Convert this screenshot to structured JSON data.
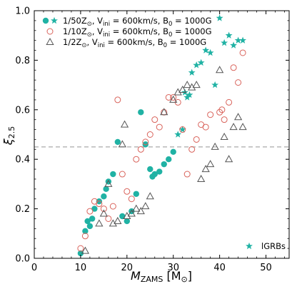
{
  "chart_data": {
    "type": "scatter",
    "xlabel": "M_ZAMS [M_sun]",
    "ylabel": "xi_2.5",
    "xlabel_parts": {
      "main": "M",
      "sub": "ZAMS",
      "unit_open": " [M",
      "unit_sub": "⊙",
      "unit_close": "]"
    },
    "ylabel_parts": {
      "main": "ξ",
      "sub": "2.5"
    },
    "xlim": [
      0,
      55
    ],
    "ylim": [
      0.0,
      1.0
    ],
    "xticks": [
      0,
      10,
      20,
      30,
      40,
      50
    ],
    "yticks": [
      0.0,
      0.2,
      0.4,
      0.6,
      0.8,
      1.0
    ],
    "xtick_labels": [
      "0",
      "10",
      "20",
      "30",
      "40",
      "50"
    ],
    "ytick_labels": [
      "0.0",
      "0.2",
      "0.4",
      "0.6",
      "0.8",
      "1.0"
    ],
    "grid": false,
    "legend_position": "top-left",
    "reference_line": {
      "y": 0.45,
      "style": "dashed",
      "color": "#aaaaaa"
    },
    "series": [
      {
        "name": "1/50Z⊙, Vini = 600km/s, B0 = 1000G",
        "legend_parts": {
          "z": "1/50Z",
          "v": "V",
          "vsub": "ini",
          "vval": " = 600km/s, ",
          "b": "B",
          "bsub": "0",
          "bval": " = 1000G"
        },
        "marker": "filled-circle",
        "color": "#20b2a4",
        "points": [
          [
            10.0,
            0.02
          ],
          [
            11.0,
            0.11
          ],
          [
            11.5,
            0.15
          ],
          [
            12.0,
            0.13
          ],
          [
            12.5,
            0.16
          ],
          [
            13.0,
            0.2
          ],
          [
            14.0,
            0.23
          ],
          [
            15.0,
            0.25
          ],
          [
            15.5,
            0.28
          ],
          [
            16.0,
            0.31
          ],
          [
            17.0,
            0.34
          ],
          [
            18.0,
            0.47
          ],
          [
            19.0,
            0.17
          ],
          [
            20.0,
            0.15
          ],
          [
            21.0,
            0.19
          ],
          [
            22.0,
            0.26
          ],
          [
            23.0,
            0.59
          ],
          [
            24.0,
            0.46
          ],
          [
            25.0,
            0.36
          ],
          [
            25.5,
            0.33
          ],
          [
            26.0,
            0.34
          ],
          [
            27.0,
            0.35
          ],
          [
            28.0,
            0.38
          ],
          [
            29.0,
            0.4
          ],
          [
            30.0,
            0.43
          ]
        ]
      },
      {
        "name": "1/50Z⊙ (lGRBs)",
        "marker": "star",
        "color": "#20b2a4",
        "points": [
          [
            31.0,
            0.5
          ],
          [
            32.0,
            0.52
          ],
          [
            32.5,
            0.67
          ],
          [
            33.0,
            0.65
          ],
          [
            33.5,
            0.66
          ],
          [
            34.0,
            0.75
          ],
          [
            35.0,
            0.78
          ],
          [
            36.0,
            0.79
          ],
          [
            37.0,
            0.84
          ],
          [
            38.0,
            0.83
          ],
          [
            39.0,
            0.7
          ],
          [
            40.0,
            0.97
          ],
          [
            41.0,
            0.87
          ],
          [
            42.0,
            0.9
          ],
          [
            43.0,
            0.86
          ],
          [
            44.0,
            0.88
          ],
          [
            45.0,
            0.88
          ]
        ]
      },
      {
        "name": "1/10Z⊙, Vini = 600km/s, B0 = 1000G",
        "legend_parts": {
          "z": "1/10Z",
          "v": "V",
          "vsub": "ini",
          "vval": " = 600km/s, ",
          "b": "B",
          "bsub": "0",
          "bval": " = 1000G"
        },
        "marker": "open-circle",
        "color": "#d9635b",
        "points": [
          [
            10.0,
            0.04
          ],
          [
            11.0,
            0.09
          ],
          [
            12.0,
            0.19
          ],
          [
            13.0,
            0.23
          ],
          [
            14.0,
            0.22
          ],
          [
            15.0,
            0.2
          ],
          [
            16.0,
            0.16
          ],
          [
            17.0,
            0.21
          ],
          [
            18.0,
            0.64
          ],
          [
            19.0,
            0.34
          ],
          [
            20.0,
            0.27
          ],
          [
            21.0,
            0.24
          ],
          [
            22.0,
            0.4
          ],
          [
            23.0,
            0.44
          ],
          [
            24.0,
            0.47
          ],
          [
            25.0,
            0.5
          ],
          [
            26.0,
            0.56
          ],
          [
            27.0,
            0.53
          ],
          [
            28.0,
            0.59
          ],
          [
            29.0,
            0.65
          ],
          [
            30.0,
            0.65
          ],
          [
            31.0,
            0.63
          ],
          [
            32.0,
            0.52
          ],
          [
            33.0,
            0.34
          ],
          [
            34.0,
            0.44
          ],
          [
            35.0,
            0.48
          ],
          [
            36.0,
            0.54
          ],
          [
            37.0,
            0.53
          ],
          [
            38.0,
            0.58
          ],
          [
            40.0,
            0.59
          ],
          [
            40.5,
            0.6
          ],
          [
            41.0,
            0.56
          ],
          [
            42.0,
            0.63
          ],
          [
            43.0,
            0.77
          ],
          [
            44.0,
            0.71
          ],
          [
            45.0,
            0.83
          ]
        ]
      },
      {
        "name": "1/2Z⊙, Vini = 600km/s, B0 = 1000G",
        "legend_parts": {
          "z": "1/2Z",
          "v": "V",
          "vsub": "ini",
          "vval": " = 600km/s, ",
          "b": "B",
          "bsub": "0",
          "bval": " = 1000G"
        },
        "marker": "open-triangle",
        "color": "#555555",
        "points": [
          [
            11.0,
            0.03
          ],
          [
            14.0,
            0.14
          ],
          [
            15.0,
            0.18
          ],
          [
            16.0,
            0.3
          ],
          [
            17.0,
            0.14
          ],
          [
            18.0,
            0.15
          ],
          [
            19.0,
            0.46
          ],
          [
            19.5,
            0.54
          ],
          [
            20.0,
            0.17
          ],
          [
            21.0,
            0.18
          ],
          [
            22.0,
            0.2
          ],
          [
            23.0,
            0.19
          ],
          [
            24.0,
            0.21
          ],
          [
            25.0,
            0.25
          ],
          [
            28.0,
            0.59
          ],
          [
            30.0,
            0.64
          ],
          [
            31.0,
            0.67
          ],
          [
            32.0,
            0.68
          ],
          [
            33.0,
            0.7
          ],
          [
            34.0,
            0.69
          ],
          [
            35.0,
            0.7
          ],
          [
            36.0,
            0.32
          ],
          [
            37.0,
            0.36
          ],
          [
            38.0,
            0.38
          ],
          [
            39.0,
            0.45
          ],
          [
            40.0,
            0.76
          ],
          [
            41.0,
            0.49
          ],
          [
            42.0,
            0.4
          ],
          [
            43.0,
            0.53
          ],
          [
            44.0,
            0.57
          ],
          [
            45.0,
            0.53
          ]
        ]
      }
    ],
    "annotation": {
      "text": "lGRBs",
      "marker": "star",
      "color": "#20b2a4"
    }
  }
}
